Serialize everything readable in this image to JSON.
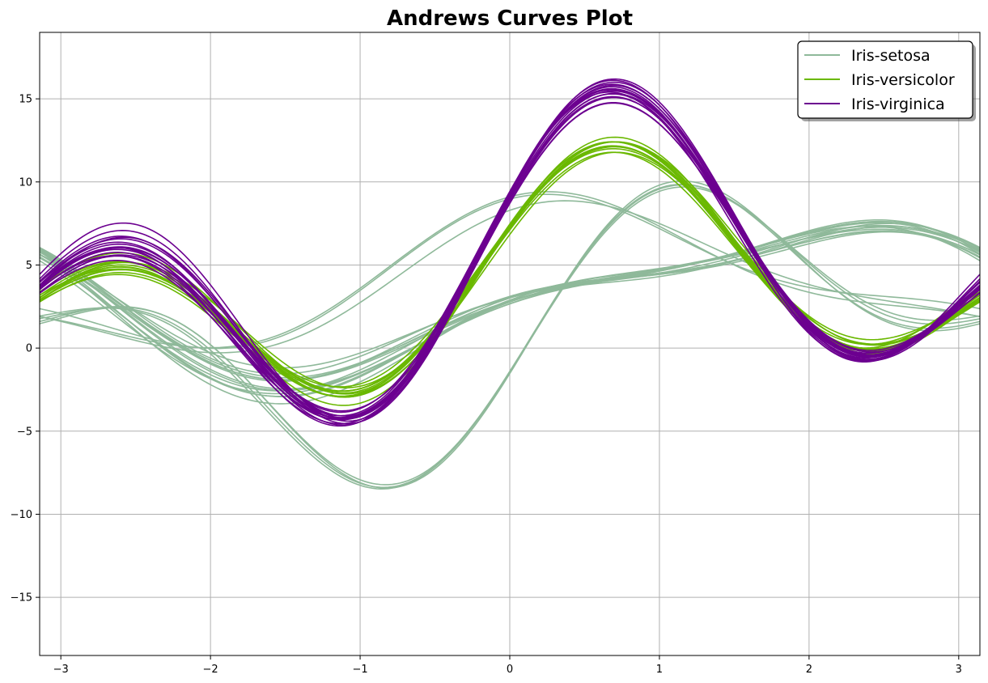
{
  "chart_data": {
    "type": "line",
    "title": "Andrews Curves Plot",
    "xlabel": "",
    "ylabel": "",
    "xlim": [
      -3.14159,
      3.14159
    ],
    "ylim": [
      -18.5,
      19.0
    ],
    "x_ticks": [
      -3,
      -2,
      -1,
      0,
      1,
      2,
      3
    ],
    "x_tick_labels": [
      "−3",
      "−2",
      "−1",
      "0",
      "1",
      "2",
      "3"
    ],
    "y_ticks": [
      -15,
      -10,
      -5,
      0,
      5,
      10,
      15
    ],
    "y_tick_labels": [
      "−15",
      "−10",
      "−5",
      "0",
      "5",
      "10",
      "15"
    ],
    "grid": true,
    "legend_position": "top-right",
    "transform": "f(t) = x1/√2 + x2·sin(t) + x3·cos(t) + x4·sin(2t) + x5·cos(2t)",
    "series": [
      {
        "name": "Iris-setosa",
        "color": "#8fb99a",
        "coefficients": [
          [
            1.65,
            6.2,
            -1.6,
            4.0,
            -1.0
          ],
          [
            1.65,
            6.1,
            -1.5,
            4.2,
            -1.2
          ],
          [
            1.6,
            6.3,
            -1.7,
            3.9,
            -0.9
          ],
          [
            1.7,
            6.0,
            -1.5,
            4.1,
            -1.1
          ],
          [
            5.8,
            2.0,
            3.6,
            0.2,
            1.4
          ],
          [
            5.5,
            2.5,
            3.2,
            0.3,
            1.2
          ],
          [
            5.9,
            2.1,
            3.3,
            0.1,
            1.5
          ],
          [
            3.9,
            4.6,
            -1.4,
            -0.5,
            1.5
          ],
          [
            4.2,
            4.2,
            -1.6,
            -0.5,
            1.3
          ],
          [
            4.4,
            3.8,
            -1.3,
            -0.4,
            1.2
          ],
          [
            4.6,
            3.5,
            -1.5,
            -0.6,
            1.3
          ],
          [
            4.0,
            4.0,
            -1.2,
            -0.5,
            1.4
          ],
          [
            4.3,
            3.6,
            -1.4,
            -0.4,
            1.2
          ],
          [
            4.1,
            4.4,
            -1.5,
            -0.6,
            1.4
          ],
          [
            4.5,
            3.9,
            -1.6,
            -0.5,
            1.2
          ],
          [
            3.8,
            4.1,
            -1.3,
            -0.4,
            1.5
          ],
          [
            4.7,
            3.4,
            -1.4,
            -0.5,
            1.1
          ],
          [
            4.2,
            4.1,
            -1.5,
            -0.4,
            1.3
          ],
          [
            4.4,
            3.7,
            -1.4,
            -0.5,
            1.4
          ],
          [
            3.9,
            4.3,
            -1.3,
            -0.6,
            1.2
          ]
        ]
      },
      {
        "name": "Iris-versicolor",
        "color": "#6ab800",
        "coefficients": [
          [
            5.3,
            3.4,
            2.1,
            4.7,
            1.4
          ],
          [
            5.5,
            3.2,
            2.0,
            4.5,
            1.5
          ],
          [
            5.1,
            3.6,
            2.2,
            4.9,
            1.5
          ],
          [
            5.4,
            3.0,
            2.1,
            4.6,
            1.3
          ],
          [
            5.2,
            3.3,
            2.3,
            4.4,
            1.4
          ],
          [
            5.6,
            3.1,
            1.9,
            4.8,
            1.6
          ],
          [
            5.0,
            3.5,
            2.0,
            4.3,
            1.3
          ],
          [
            5.3,
            3.4,
            2.2,
            4.6,
            1.5
          ],
          [
            5.5,
            3.3,
            2.1,
            4.2,
            1.4
          ],
          [
            5.2,
            3.2,
            2.0,
            4.7,
            1.5
          ],
          [
            5.4,
            3.5,
            2.2,
            4.5,
            1.3
          ],
          [
            5.1,
            3.1,
            2.1,
            4.4,
            1.4
          ]
        ]
      },
      {
        "name": "Iris-virginica",
        "color": "#6c0090",
        "coefficients": [
          [
            6.2,
            4.3,
            2.7,
            6.0,
            2.0
          ],
          [
            6.4,
            4.1,
            2.6,
            6.3,
            2.1
          ],
          [
            6.0,
            4.5,
            2.8,
            5.8,
            1.9
          ],
          [
            6.3,
            4.0,
            2.5,
            6.1,
            2.0
          ],
          [
            6.1,
            4.4,
            2.9,
            5.9,
            2.1
          ],
          [
            6.5,
            4.2,
            2.7,
            6.4,
            1.9
          ],
          [
            5.9,
            4.6,
            2.6,
            5.7,
            2.0
          ],
          [
            6.2,
            4.0,
            2.8,
            6.0,
            2.2
          ],
          [
            6.6,
            4.3,
            2.5,
            6.6,
            2.0
          ],
          [
            6.0,
            4.1,
            2.7,
            5.6,
            1.8
          ],
          [
            6.3,
            4.5,
            2.6,
            6.2,
            2.1
          ],
          [
            6.4,
            4.2,
            2.9,
            5.9,
            2.0
          ],
          [
            5.8,
            4.4,
            2.7,
            5.5,
            1.9
          ],
          [
            6.2,
            4.6,
            2.8,
            6.1,
            2.2
          ],
          [
            6.7,
            4.0,
            2.4,
            6.7,
            2.1
          ],
          [
            6.1,
            4.3,
            2.6,
            5.8,
            2.0
          ]
        ]
      }
    ]
  }
}
